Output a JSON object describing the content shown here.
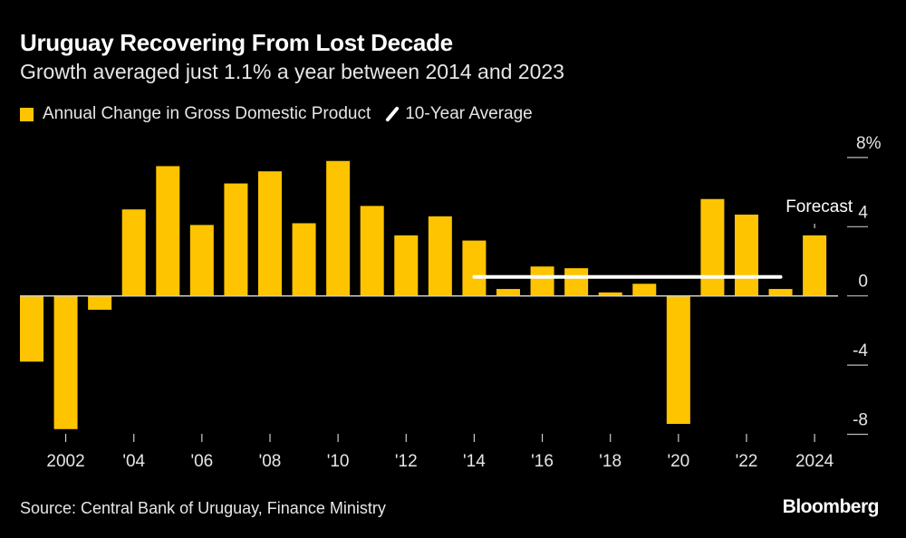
{
  "chart_data": {
    "type": "bar",
    "title": "Uruguay Recovering From Lost Decade",
    "subtitle": "Growth averaged just 1.1% a year between 2014 and 2023",
    "x": [
      2001,
      2002,
      2003,
      2004,
      2005,
      2006,
      2007,
      2008,
      2009,
      2010,
      2011,
      2012,
      2013,
      2014,
      2015,
      2016,
      2017,
      2018,
      2019,
      2020,
      2021,
      2022,
      2023,
      2024
    ],
    "series": [
      {
        "name": "Annual Change in Gross Domestic Product",
        "color": "#ffc400",
        "values": [
          -3.8,
          -7.7,
          -0.8,
          5.0,
          7.5,
          4.1,
          6.5,
          7.2,
          4.2,
          7.8,
          5.2,
          3.5,
          4.6,
          3.2,
          0.4,
          1.7,
          1.6,
          0.2,
          0.7,
          -7.4,
          5.6,
          4.7,
          0.4,
          3.5
        ]
      },
      {
        "name": "10-Year Average",
        "color": "#ffffff",
        "type": "line",
        "x": [
          2014,
          2023
        ],
        "values": [
          1.1,
          1.1
        ]
      }
    ],
    "x_tick_labels": [
      {
        "year": 2002,
        "label": "2002"
      },
      {
        "year": 2004,
        "label": "'04"
      },
      {
        "year": 2006,
        "label": "'06"
      },
      {
        "year": 2008,
        "label": "'08"
      },
      {
        "year": 2010,
        "label": "'10"
      },
      {
        "year": 2012,
        "label": "'12"
      },
      {
        "year": 2014,
        "label": "'14"
      },
      {
        "year": 2016,
        "label": "'16"
      },
      {
        "year": 2018,
        "label": "'18"
      },
      {
        "year": 2020,
        "label": "'20"
      },
      {
        "year": 2022,
        "label": "'22"
      },
      {
        "year": 2024,
        "label": "2024"
      }
    ],
    "y_ticks": [
      {
        "value": 8,
        "label": "8%"
      },
      {
        "value": 4,
        "label": "4"
      },
      {
        "value": 0,
        "label": "0"
      },
      {
        "value": -4,
        "label": "-4"
      },
      {
        "value": -8,
        "label": "-8"
      }
    ],
    "ylim": [
      -8,
      8
    ],
    "y_axis_side": "right",
    "grid": false,
    "legend_placement": "top-left",
    "annotations": [
      {
        "year": 2024,
        "text": "Forecast"
      }
    ]
  },
  "footer": {
    "source": "Source: Central Bank of Uruguay, Finance Ministry",
    "brand": "Bloomberg"
  }
}
